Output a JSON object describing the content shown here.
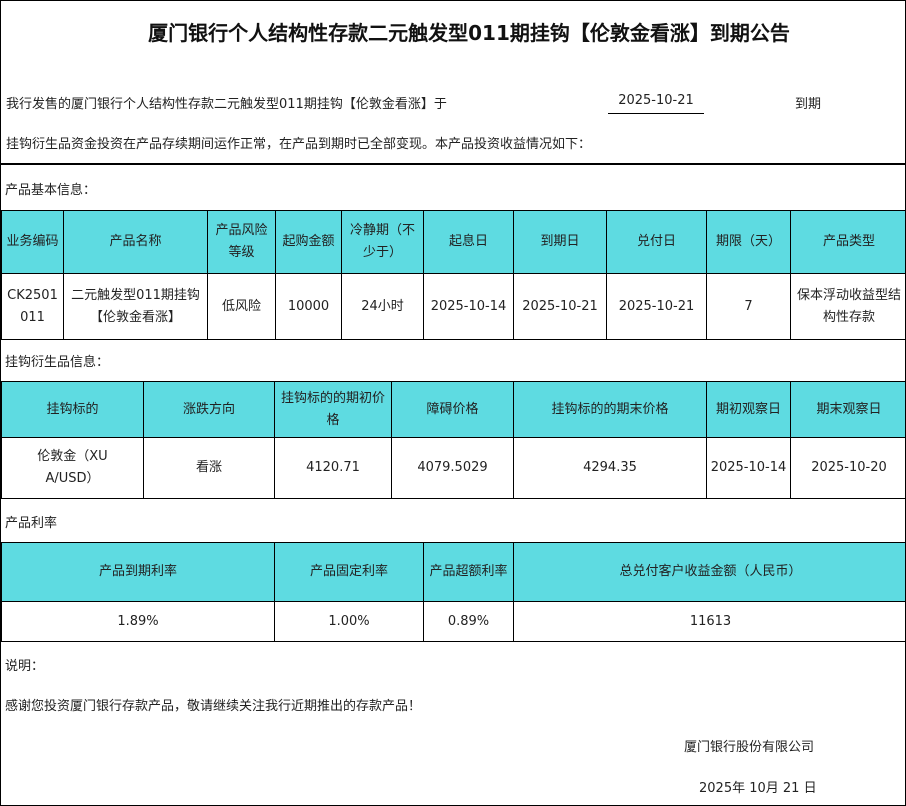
{
  "title": "厦门银行个人结构性存款二元触发型011期挂钩【伦敦金看涨】到期公告",
  "intro": {
    "line1": "我行发售的厦门银行个人结构性存款二元触发型011期挂钩【伦敦金看涨】于",
    "date": "2025-10-21",
    "suffix": "到期",
    "line2": "挂钩衍生品资金投资在产品存续期间运作正常，在产品到期时已全部变现。本产品投资收益情况如下："
  },
  "basic": {
    "section": "产品基本信息：",
    "headers": [
      "业务编码",
      "产品名称",
      "产品风险等级",
      "起购金额",
      "冷静期（不少于）",
      "起息日",
      "到期日",
      "兑付日",
      "期限（天）",
      "产品类型"
    ],
    "row": [
      "CK2501011",
      "二元触发型011期挂钩【伦敦金看涨】",
      "低风险",
      "10000",
      "24小时",
      "2025-10-14",
      "2025-10-21",
      "2025-10-21",
      "7",
      "保本浮动收益型结构性存款"
    ]
  },
  "deriv": {
    "section": "挂钩衍生品信息：",
    "headers": [
      "挂钩标的",
      "涨跌方向",
      "挂钩标的的期初价格",
      "障碍价格",
      "挂钩标的的期末价格",
      "期初观察日",
      "期末观察日"
    ],
    "row": [
      "伦敦金（XUA/USD）",
      "看涨",
      "4120.71",
      "4079.5029",
      "4294.35",
      "2025-10-14",
      "2025-10-20"
    ]
  },
  "rate": {
    "section": "产品利率",
    "headers": [
      "产品到期利率",
      "产品固定利率",
      "产品超额利率",
      "总兑付客户收益金额（人民币）"
    ],
    "row": [
      "1.89%",
      "1.00%",
      "0.89%",
      "11613"
    ]
  },
  "notes": {
    "label": "说明：",
    "text": "感谢您投资厦门银行存款产品，敬请继续关注我行近期推出的存款产品！",
    "company": "厦门银行股份有限公司",
    "date": "2025年 10月 21 日"
  },
  "colors": {
    "header_bg": "#5edbe1"
  }
}
